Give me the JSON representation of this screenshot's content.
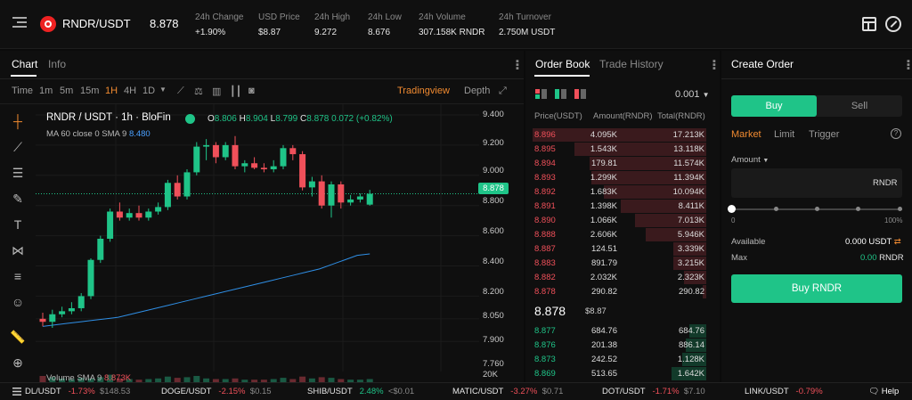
{
  "header": {
    "menu_icon": "menu-icon",
    "pair": "RNDR/USDT",
    "price": "8.878",
    "stats": [
      {
        "label": "24h Change",
        "value": "+1.90%"
      },
      {
        "label": "USD Price",
        "value": "$8.87"
      },
      {
        "label": "24h High",
        "value": "9.272"
      },
      {
        "label": "24h Low",
        "value": "8.676"
      },
      {
        "label": "24h Volume",
        "value": "307.158K RNDR"
      },
      {
        "label": "24h Turnover",
        "value": "2.750M USDT"
      }
    ]
  },
  "chart": {
    "tabs": [
      "Chart",
      "Info"
    ],
    "timeframes": [
      "Time",
      "1m",
      "5m",
      "15m",
      "1H",
      "4H",
      "1D"
    ],
    "tradingview": "Tradingview",
    "depth": "Depth",
    "legend": {
      "pair": "RNDR / USDT · 1h · BloFin",
      "o_label": "O",
      "o": "8.806",
      "h_label": "H",
      "h": "8.904",
      "l_label": "L",
      "l": "8.799",
      "c_label": "C",
      "c": "8.878",
      "change": "0.072 (+0.82%)"
    },
    "ma": {
      "label": "MA 60 close 0 SMA 9",
      "value": "8.480"
    },
    "volume_label": "Volume SMA 9",
    "volume_value": "8.873K",
    "price_tag": "8.878",
    "axis_labels": [
      "9.400",
      "9.200",
      "9.000",
      "8.800",
      "8.600",
      "8.400",
      "8.200",
      "8.050",
      "7.900",
      "7.760",
      "20K"
    ]
  },
  "chart_data": {
    "type": "candlestick",
    "current_price": 8.878,
    "candles": [
      [
        8.05,
        8.09,
        8.0,
        8.03
      ],
      [
        8.03,
        8.11,
        7.99,
        8.08
      ],
      [
        8.08,
        8.13,
        8.06,
        8.1
      ],
      [
        8.1,
        8.16,
        8.08,
        8.12
      ],
      [
        8.12,
        8.22,
        8.1,
        8.2
      ],
      [
        8.2,
        8.45,
        8.18,
        8.44
      ],
      [
        8.44,
        8.6,
        8.42,
        8.58
      ],
      [
        8.58,
        8.78,
        8.56,
        8.76
      ],
      [
        8.76,
        8.82,
        8.7,
        8.72
      ],
      [
        8.72,
        8.78,
        8.7,
        8.75
      ],
      [
        8.75,
        8.8,
        8.7,
        8.72
      ],
      [
        8.72,
        8.78,
        8.7,
        8.76
      ],
      [
        8.76,
        8.82,
        8.74,
        8.79
      ],
      [
        8.79,
        8.97,
        8.77,
        8.95
      ],
      [
        8.95,
        9.0,
        8.84,
        8.86
      ],
      [
        8.86,
        9.04,
        8.84,
        9.02
      ],
      [
        9.02,
        9.22,
        9.0,
        9.19
      ],
      [
        9.19,
        9.24,
        9.1,
        9.2
      ],
      [
        9.2,
        9.22,
        9.08,
        9.12
      ],
      [
        9.12,
        9.22,
        9.1,
        9.2
      ],
      [
        9.2,
        9.26,
        9.04,
        9.06
      ],
      [
        9.06,
        9.1,
        9.02,
        9.08
      ],
      [
        9.08,
        9.12,
        9.04,
        9.05
      ],
      [
        9.05,
        9.08,
        9.02,
        9.04
      ],
      [
        9.04,
        9.1,
        9.02,
        9.06
      ],
      [
        9.06,
        9.2,
        9.04,
        9.18
      ],
      [
        9.18,
        9.2,
        9.1,
        9.14
      ],
      [
        9.14,
        9.16,
        8.9,
        8.92
      ],
      [
        8.92,
        8.99,
        8.86,
        8.96
      ],
      [
        8.96,
        9.0,
        8.78,
        8.8
      ],
      [
        8.8,
        8.96,
        8.72,
        8.94
      ],
      [
        8.94,
        8.96,
        8.78,
        8.82
      ],
      [
        8.82,
        8.87,
        8.8,
        8.84
      ],
      [
        8.84,
        8.88,
        8.82,
        8.86
      ],
      [
        8.806,
        8.904,
        8.799,
        8.878
      ]
    ],
    "ma": [
      8.0,
      8.01,
      8.02,
      8.03,
      8.04,
      8.05,
      8.06,
      8.08,
      8.1,
      8.12,
      8.14,
      8.16,
      8.18,
      8.2,
      8.22,
      8.24,
      8.26,
      8.28,
      8.3,
      8.32,
      8.34,
      8.36,
      8.38,
      8.41,
      8.44,
      8.47,
      8.48
    ],
    "volumes": [
      1,
      0.8,
      0.6,
      0.5,
      0.7,
      0.6,
      0.8,
      1.2,
      0.6,
      0.5,
      0.4,
      0.5,
      0.6,
      0.9,
      0.7,
      0.8,
      1.0,
      0.6,
      0.5,
      0.5,
      0.6,
      0.4,
      0.4,
      0.4,
      0.5,
      0.7,
      0.5,
      0.9,
      0.6,
      0.8,
      0.7,
      0.5,
      0.4,
      0.4,
      0.5
    ]
  },
  "orderbook": {
    "tabs": [
      "Order Book",
      "Trade History"
    ],
    "precision": "0.001",
    "headers": [
      "Price(USDT)",
      "Amount(RNDR)",
      "Total(RNDR)"
    ],
    "asks": [
      {
        "p": "8.896",
        "a": "4.095K",
        "t": "17.213K",
        "d": 1.0
      },
      {
        "p": "8.895",
        "a": "1.543K",
        "t": "13.118K",
        "d": 0.76
      },
      {
        "p": "8.894",
        "a": "179.81",
        "t": "11.574K",
        "d": 0.67
      },
      {
        "p": "8.893",
        "a": "1.299K",
        "t": "11.394K",
        "d": 0.66
      },
      {
        "p": "8.892",
        "a": "1.683K",
        "t": "10.094K",
        "d": 0.59
      },
      {
        "p": "8.891",
        "a": "1.398K",
        "t": "8.411K",
        "d": 0.49
      },
      {
        "p": "8.890",
        "a": "1.066K",
        "t": "7.013K",
        "d": 0.41
      },
      {
        "p": "8.888",
        "a": "2.606K",
        "t": "5.946K",
        "d": 0.35
      },
      {
        "p": "8.887",
        "a": "124.51",
        "t": "3.339K",
        "d": 0.19
      },
      {
        "p": "8.883",
        "a": "891.79",
        "t": "3.215K",
        "d": 0.19
      },
      {
        "p": "8.882",
        "a": "2.032K",
        "t": "2.323K",
        "d": 0.13
      },
      {
        "p": "8.878",
        "a": "290.82",
        "t": "290.82",
        "d": 0.02
      }
    ],
    "mid_price": "8.878",
    "mid_usd": "$8.87",
    "bids": [
      {
        "p": "8.877",
        "a": "684.76",
        "t": "684.76",
        "d": 0.1
      },
      {
        "p": "8.876",
        "a": "201.38",
        "t": "886.14",
        "d": 0.12
      },
      {
        "p": "8.873",
        "a": "242.52",
        "t": "1.128K",
        "d": 0.14
      },
      {
        "p": "8.869",
        "a": "513.65",
        "t": "1.642K",
        "d": 0.2
      }
    ]
  },
  "order": {
    "title": "Create Order",
    "buy": "Buy",
    "sell": "Sell",
    "types": [
      "Market",
      "Limit",
      "Trigger"
    ],
    "amount_label": "Amount",
    "unit": "RNDR",
    "slider_min": "0",
    "slider_max": "100%",
    "available_label": "Available",
    "available_value": "0.000 USDT",
    "max_label": "Max",
    "max_value": "0.00",
    "max_unit": "RNDR",
    "submit": "Buy RNDR"
  },
  "ticker": [
    {
      "pair": "DL/USDT",
      "change": "-1.73%",
      "price": "$148.53"
    },
    {
      "pair": "DOGE/USDT",
      "change": "-2.15%",
      "price": "$0.15"
    },
    {
      "pair": "SHIB/USDT",
      "change": "2.48%",
      "price": "<$0.01"
    },
    {
      "pair": "MATIC/USDT",
      "change": "-3.27%",
      "price": "$0.71"
    },
    {
      "pair": "DOT/USDT",
      "change": "-1.71%",
      "price": "$7.10"
    },
    {
      "pair": "LINK/USDT",
      "change": "-0.79%",
      "price": ""
    }
  ],
  "help": "Help"
}
